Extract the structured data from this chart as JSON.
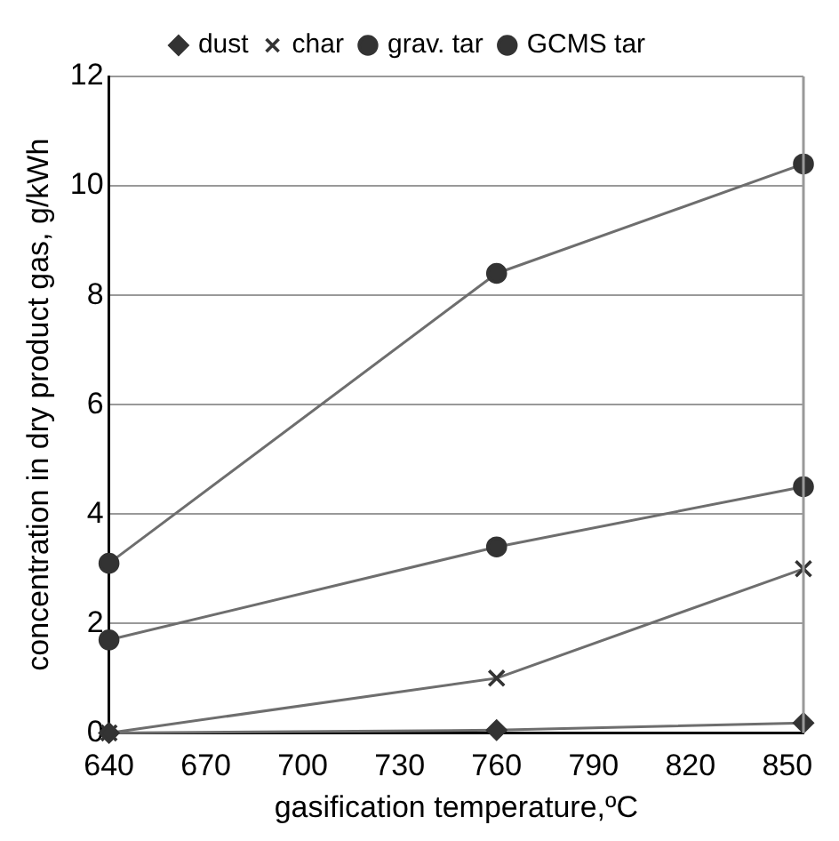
{
  "chart_data": {
    "type": "line",
    "xlabel": "gasification temperature,ºC",
    "ylabel": "concentration in dry product gas, g/kWh",
    "x": [
      640,
      760,
      855
    ],
    "xlim": [
      640,
      855
    ],
    "xticks": [
      640,
      670,
      700,
      730,
      760,
      790,
      820,
      850
    ],
    "ylim": [
      0,
      12
    ],
    "yticks": [
      0,
      2,
      4,
      6,
      8,
      10,
      12
    ],
    "grid": "y",
    "legend": "top",
    "series": [
      {
        "name": "dust",
        "color": "#333333",
        "marker": "diamond",
        "values": [
          0,
          0.05,
          0.18
        ]
      },
      {
        "name": "char",
        "color": "#333333",
        "marker": "cross",
        "values": [
          0,
          1.0,
          3.0
        ]
      },
      {
        "name": "grav. tar",
        "color": "#333333",
        "marker": "circle",
        "values": [
          1.7,
          3.4,
          4.5
        ]
      },
      {
        "name": "GCMS tar",
        "color": "#333333",
        "marker": "circle",
        "values": [
          3.1,
          8.4,
          10.4
        ]
      }
    ]
  }
}
